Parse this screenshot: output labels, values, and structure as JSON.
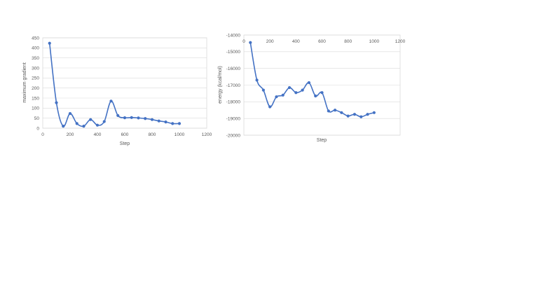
{
  "chart_data": [
    {
      "type": "line",
      "title": "",
      "xlabel": "Step",
      "ylabel": "maximum gradient",
      "xlim": [
        0,
        1200
      ],
      "ylim": [
        0,
        450
      ],
      "x_ticks": [
        0,
        200,
        400,
        600,
        800,
        1000,
        1200
      ],
      "y_ticks": [
        0,
        50,
        100,
        150,
        200,
        250,
        300,
        350,
        400,
        450
      ],
      "grid": true,
      "smooth": true,
      "color": "#4472c4",
      "series": [
        {
          "x": [
            50,
            100,
            150,
            200,
            250,
            300,
            350,
            400,
            450,
            500,
            550,
            600,
            650,
            700,
            750,
            800,
            850,
            900,
            950,
            1000
          ],
          "y": [
            423,
            127,
            10,
            73,
            23,
            10,
            43,
            15,
            33,
            135,
            63,
            52,
            53,
            51,
            48,
            43,
            36,
            31,
            23,
            23
          ]
        }
      ]
    },
    {
      "type": "line",
      "title": "",
      "xlabel": "Step",
      "ylabel": "energy (kcal/mol)",
      "xlim": [
        0,
        1200
      ],
      "ylim": [
        -20000,
        -14000
      ],
      "x_ticks": [
        0,
        200,
        400,
        600,
        800,
        1000,
        1200
      ],
      "y_ticks": [
        -14000,
        -15000,
        -16000,
        -17000,
        -18000,
        -19000,
        -20000
      ],
      "x_axis_position": "top",
      "grid": true,
      "smooth": true,
      "color": "#4472c4",
      "series": [
        {
          "x": [
            50,
            100,
            150,
            200,
            250,
            300,
            350,
            400,
            450,
            500,
            550,
            600,
            650,
            700,
            750,
            800,
            850,
            900,
            950,
            1000
          ],
          "y": [
            -14450,
            -16700,
            -17300,
            -18300,
            -17700,
            -17600,
            -17150,
            -17450,
            -17300,
            -16850,
            -17650,
            -17450,
            -18550,
            -18500,
            -18650,
            -18850,
            -18750,
            -18900,
            -18750,
            -18650
          ]
        }
      ]
    }
  ]
}
